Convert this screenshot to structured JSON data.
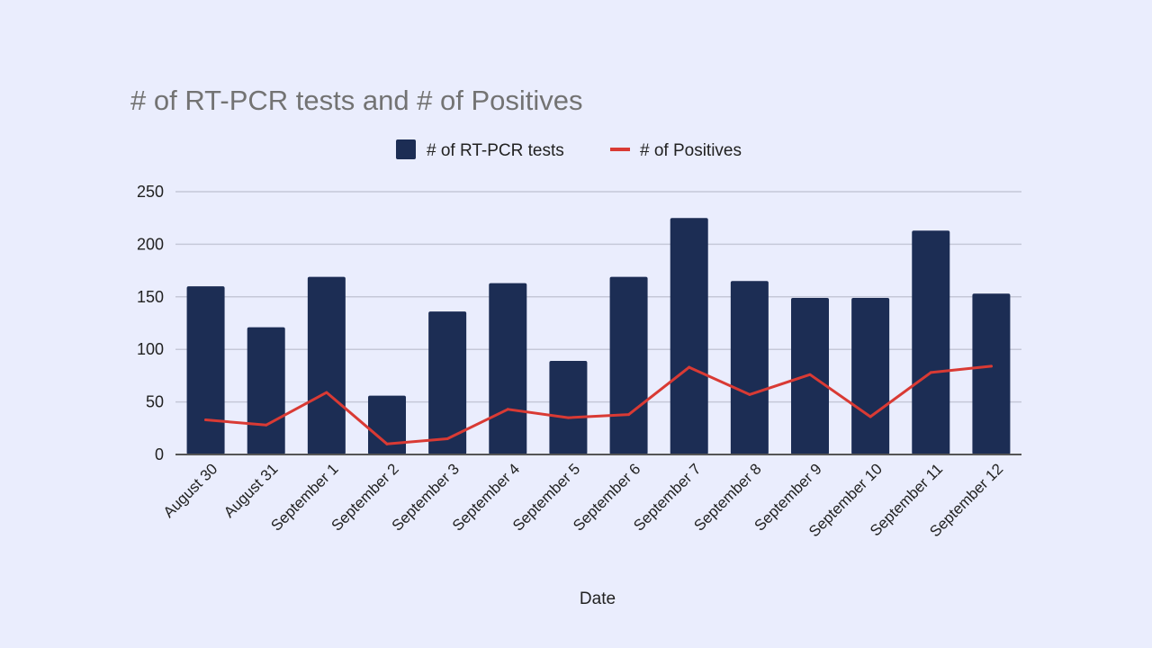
{
  "chart_data": {
    "type": "bar",
    "title": "# of RT-PCR tests and # of Positives",
    "xlabel": "Date",
    "ylabel": "",
    "ylim": [
      0,
      250
    ],
    "yticks": [
      0,
      50,
      100,
      150,
      200,
      250
    ],
    "grid": true,
    "legend_position": "top-center",
    "categories": [
      "August 30",
      "August 31",
      "September 1",
      "September 2",
      "September 3",
      "September 4",
      "September 5",
      "September 6",
      "September 7",
      "September 8",
      "September 9",
      "September 10",
      "September 11",
      "September 12"
    ],
    "series": [
      {
        "name": "# of RT-PCR tests",
        "kind": "bar",
        "color": "#1c2d54",
        "values": [
          160,
          121,
          169,
          56,
          136,
          163,
          89,
          169,
          225,
          165,
          149,
          149,
          213,
          153
        ]
      },
      {
        "name": "# of Positives",
        "kind": "line",
        "color": "#d93a34",
        "values": [
          33,
          28,
          59,
          10,
          15,
          43,
          35,
          38,
          83,
          57,
          76,
          36,
          78,
          84
        ]
      }
    ]
  }
}
